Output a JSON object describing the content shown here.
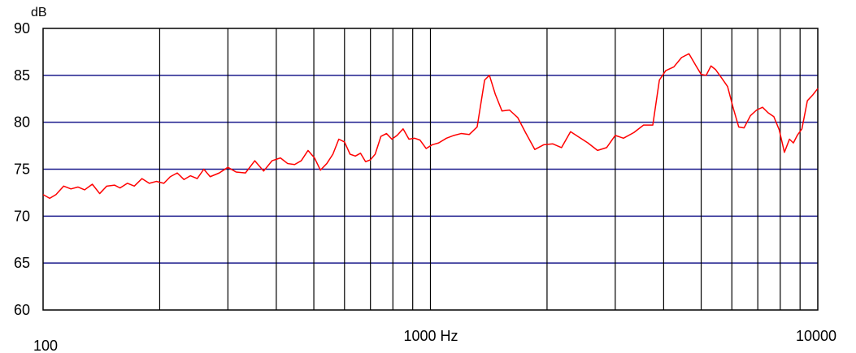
{
  "chart_data": {
    "type": "line",
    "title": "",
    "xlabel": "",
    "ylabel": "dB",
    "x_scale": "log",
    "xlim": [
      100,
      10000
    ],
    "ylim": [
      60,
      90
    ],
    "grid": true,
    "y_ticks": [
      60,
      65,
      70,
      75,
      80,
      85,
      90
    ],
    "x_tick_labels": [
      {
        "value": 100,
        "label": "100"
      },
      {
        "value": 1000,
        "label": "1000 Hz"
      },
      {
        "value": 10000,
        "label": "10000"
      }
    ],
    "x_gridlines": [
      200,
      300,
      400,
      500,
      600,
      700,
      800,
      900,
      1000,
      2000,
      3000,
      4000,
      5000,
      6000,
      7000,
      8000,
      9000
    ],
    "colors": {
      "line": "#ff0000",
      "h_grid": "#1a1a8c",
      "v_grid": "#000000",
      "frame": "#000000"
    },
    "series": [
      {
        "name": "",
        "x": [
          100,
          104,
          108,
          113,
          118,
          123,
          128,
          134,
          140,
          146,
          153,
          158,
          165,
          172,
          180,
          188,
          196,
          205,
          213,
          222,
          231,
          240,
          250,
          260,
          270,
          285,
          300,
          315,
          333,
          352,
          371,
          390,
          410,
          428,
          446,
          464,
          483,
          502,
          520,
          540,
          560,
          580,
          600,
          620,
          640,
          660,
          680,
          700,
          720,
          745,
          770,
          795,
          820,
          850,
          880,
          910,
          940,
          975,
          1010,
          1050,
          1100,
          1150,
          1200,
          1260,
          1320,
          1380,
          1420,
          1470,
          1530,
          1600,
          1680,
          1760,
          1860,
          1960,
          2070,
          2180,
          2300,
          2420,
          2550,
          2700,
          2850,
          3000,
          3150,
          3350,
          3550,
          3750,
          3900,
          4050,
          4250,
          4450,
          4650,
          4850,
          5000,
          5150,
          5300,
          5450,
          5650,
          5850,
          6050,
          6250,
          6450,
          6700,
          6950,
          7200,
          7450,
          7700,
          7950,
          8200,
          8450,
          8650,
          8850,
          9100,
          9400,
          9700,
          10000
        ],
        "y": [
          72.3,
          71.9,
          72.3,
          73.2,
          72.9,
          73.1,
          72.8,
          73.4,
          72.4,
          73.2,
          73.3,
          73.0,
          73.5,
          73.2,
          74.0,
          73.5,
          73.7,
          73.5,
          74.2,
          74.6,
          73.9,
          74.3,
          74.0,
          75.0,
          74.2,
          74.6,
          75.2,
          74.7,
          74.6,
          75.9,
          74.8,
          75.9,
          76.2,
          75.6,
          75.5,
          75.9,
          77.0,
          76.2,
          74.9,
          75.6,
          76.6,
          78.2,
          77.9,
          76.6,
          76.4,
          76.7,
          75.8,
          76.0,
          76.6,
          78.5,
          78.8,
          78.2,
          78.6,
          79.3,
          78.2,
          78.3,
          78.1,
          77.2,
          77.6,
          77.8,
          78.3,
          78.6,
          78.8,
          78.7,
          79.5,
          84.5,
          85.0,
          83.0,
          81.2,
          81.3,
          80.5,
          78.9,
          77.1,
          77.6,
          77.7,
          77.3,
          79.0,
          78.4,
          77.8,
          77.0,
          77.3,
          78.6,
          78.3,
          78.9,
          79.7,
          79.7,
          84.5,
          85.5,
          85.9,
          86.9,
          87.3,
          86.0,
          85.1,
          85.0,
          86.0,
          85.6,
          84.7,
          83.8,
          81.5,
          79.5,
          79.4,
          80.7,
          81.3,
          81.6,
          81.0,
          80.6,
          79.2,
          76.8,
          78.2,
          77.8,
          78.6,
          79.3,
          82.3,
          82.9,
          83.6
        ]
      }
    ]
  }
}
